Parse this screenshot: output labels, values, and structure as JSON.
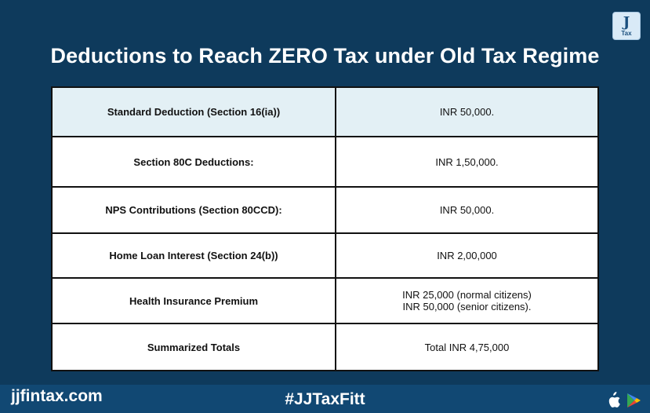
{
  "header": {
    "logo_main": "J",
    "logo_sub": "Tax",
    "title": "Deductions to Reach ZERO Tax under Old Tax Regime"
  },
  "table": {
    "rows": [
      {
        "label": "Standard Deduction (Section 16(ia))",
        "value": [
          "INR 50,000."
        ]
      },
      {
        "label": "Section 80C Deductions:",
        "value": [
          "INR 1,50,000."
        ]
      },
      {
        "label": "NPS Contributions (Section 80CCD):",
        "value": [
          "INR 50,000."
        ]
      },
      {
        "label": "Home Loan Interest (Section 24(b))",
        "value": [
          "INR 2,00,000"
        ]
      },
      {
        "label": "Health Insurance Premium",
        "value": [
          "INR 25,000 (normal citizens)",
          "INR 50,000 (senior citizens)."
        ]
      },
      {
        "label": "Summarized Totals",
        "value": [
          "Total INR 4,75,000"
        ]
      }
    ]
  },
  "footer": {
    "site": "jjfintax.com",
    "hashtag": "#JJTaxFitt",
    "icons": [
      "apple-icon",
      "play-store-icon"
    ]
  },
  "colors": {
    "background": "#0e3a5c",
    "footer_bar": "#114873",
    "highlight_row": "#e3f0f5"
  }
}
